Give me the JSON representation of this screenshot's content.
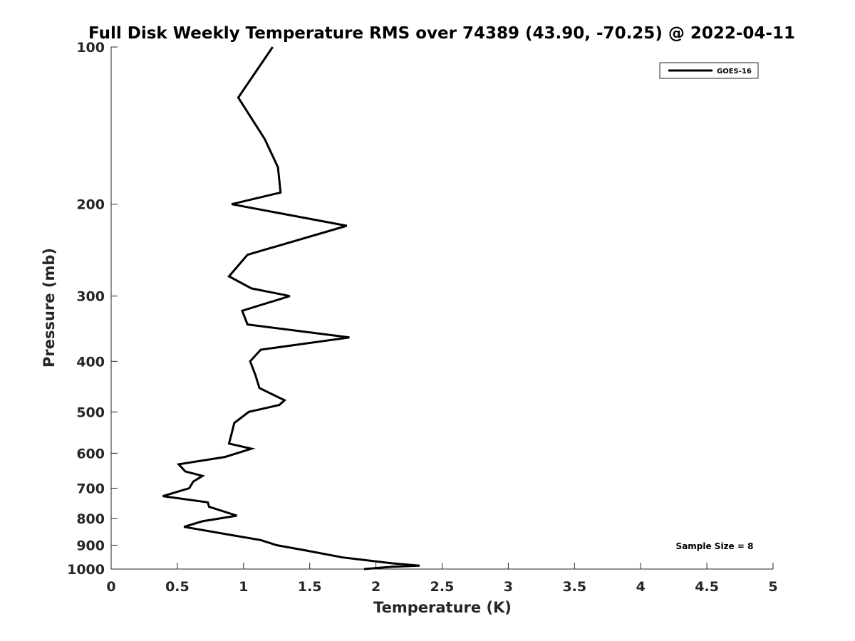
{
  "chart_data": {
    "type": "line",
    "title": "Full Disk Weekly Temperature RMS over 74389 (43.90, -70.25) @ 2022-04-11",
    "xlabel": "Temperature (K)",
    "ylabel": "Pressure (mb)",
    "xlim": [
      0,
      5
    ],
    "ylim": [
      1000,
      100
    ],
    "y_scale": "log",
    "y_reversed": true,
    "grid": false,
    "x_ticks": [
      "0",
      "0.5",
      "1",
      "1.5",
      "2",
      "2.5",
      "3",
      "3.5",
      "4",
      "4.5",
      "5"
    ],
    "y_ticks": [
      "100",
      "200",
      "300",
      "400",
      "500",
      "600",
      "700",
      "800",
      "900",
      "1000"
    ],
    "legend": {
      "position": "top-right",
      "entries": [
        "GOES-16"
      ]
    },
    "annotation": "Sample Size = 8",
    "series": [
      {
        "name": "GOES-16",
        "color": "#000000",
        "points": [
          [
            1.22,
            100
          ],
          [
            0.96,
            125
          ],
          [
            1.16,
            150
          ],
          [
            1.26,
            170
          ],
          [
            1.28,
            190
          ],
          [
            0.91,
            200
          ],
          [
            1.78,
            220
          ],
          [
            1.03,
            250
          ],
          [
            0.89,
            275
          ],
          [
            1.06,
            290
          ],
          [
            1.35,
            300
          ],
          [
            0.99,
            320
          ],
          [
            1.03,
            340
          ],
          [
            1.8,
            360
          ],
          [
            1.13,
            380
          ],
          [
            1.05,
            400
          ],
          [
            1.09,
            425
          ],
          [
            1.12,
            450
          ],
          [
            1.31,
            475
          ],
          [
            1.27,
            485
          ],
          [
            1.04,
            500
          ],
          [
            0.93,
            525
          ],
          [
            0.91,
            550
          ],
          [
            0.89,
            575
          ],
          [
            1.06,
            588
          ],
          [
            0.86,
            610
          ],
          [
            0.51,
            630
          ],
          [
            0.56,
            650
          ],
          [
            0.69,
            663
          ],
          [
            0.62,
            680
          ],
          [
            0.59,
            700
          ],
          [
            0.39,
            725
          ],
          [
            0.73,
            745
          ],
          [
            0.74,
            760
          ],
          [
            0.95,
            790
          ],
          [
            0.69,
            810
          ],
          [
            0.55,
            830
          ],
          [
            0.9,
            860
          ],
          [
            1.13,
            880
          ],
          [
            1.25,
            900
          ],
          [
            1.46,
            920
          ],
          [
            1.75,
            950
          ],
          [
            2.12,
            975
          ],
          [
            2.33,
            985
          ],
          [
            2.12,
            990
          ],
          [
            1.91,
            1000
          ]
        ]
      }
    ]
  }
}
